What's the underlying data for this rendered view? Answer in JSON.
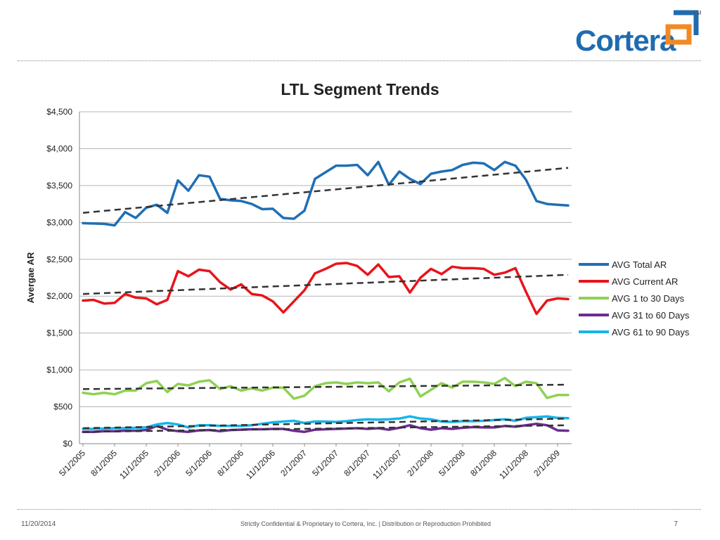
{
  "logo": {
    "text": "Cortera",
    "tm": "TM"
  },
  "footer": {
    "date": "11/20/2014",
    "confidential": "Strictly Confidential & Proprietary to Cortera, Inc. |  Distribution or Reproduction Prohibited",
    "page": "7"
  },
  "chart_data": {
    "type": "line",
    "title": "LTL Segment Trends",
    "ylabel": "Avergae AR",
    "xlabel": "",
    "ylim": [
      0,
      4500
    ],
    "yticks": [
      "$0",
      "$500",
      "$1,000",
      "$1,500",
      "$2,000",
      "$2,500",
      "$3,000",
      "$3,500",
      "$4,000",
      "$4,500"
    ],
    "xtick_labels": [
      "5/1/2005",
      "8/1/2005",
      "11/1/2005",
      "2/1/2006",
      "5/1/2006",
      "8/1/2006",
      "11/1/2006",
      "2/1/2007",
      "5/1/2007",
      "8/1/2007",
      "11/1/2007",
      "2/1/2008",
      "5/1/2008",
      "8/1/2008",
      "11/1/2008",
      "2/1/2009"
    ],
    "grid": "horizontal",
    "legend_position": "right",
    "x": [
      "5/1/2005",
      "6/1/2005",
      "7/1/2005",
      "8/1/2005",
      "9/1/2005",
      "10/1/2005",
      "11/1/2005",
      "12/1/2005",
      "1/1/2006",
      "2/1/2006",
      "3/1/2006",
      "4/1/2006",
      "5/1/2006",
      "6/1/2006",
      "7/1/2006",
      "8/1/2006",
      "9/1/2006",
      "10/1/2006",
      "11/1/2006",
      "12/1/2006",
      "1/1/2007",
      "2/1/2007",
      "3/1/2007",
      "4/1/2007",
      "5/1/2007",
      "6/1/2007",
      "7/1/2007",
      "8/1/2007",
      "9/1/2007",
      "10/1/2007",
      "11/1/2007",
      "12/1/2007",
      "1/1/2008",
      "2/1/2008",
      "3/1/2008",
      "4/1/2008",
      "5/1/2008",
      "6/1/2008",
      "7/1/2008",
      "8/1/2008",
      "9/1/2008",
      "10/1/2008",
      "11/1/2008",
      "12/1/2008",
      "1/1/2009",
      "2/1/2009",
      "3/1/2009"
    ],
    "series": [
      {
        "name": "AVG Total AR",
        "color": "#1f6fb5",
        "values": [
          2990,
          2985,
          2980,
          2960,
          3140,
          3060,
          3200,
          3240,
          3130,
          3570,
          3430,
          3640,
          3620,
          3320,
          3300,
          3290,
          3250,
          3180,
          3185,
          3060,
          3050,
          3160,
          3590,
          3680,
          3770,
          3770,
          3780,
          3640,
          3820,
          3510,
          3690,
          3590,
          3520,
          3660,
          3690,
          3710,
          3780,
          3810,
          3800,
          3710,
          3820,
          3770,
          3580,
          3290,
          3250,
          3240,
          3230
        ],
        "trend": [
          3130,
          3740
        ]
      },
      {
        "name": "AVG Current AR",
        "color": "#e8141b",
        "values": [
          1940,
          1950,
          1900,
          1910,
          2030,
          1980,
          1970,
          1890,
          1950,
          2340,
          2270,
          2360,
          2340,
          2190,
          2090,
          2160,
          2030,
          2010,
          1930,
          1780,
          1930,
          2080,
          2310,
          2370,
          2440,
          2450,
          2410,
          2290,
          2430,
          2260,
          2270,
          2050,
          2250,
          2370,
          2300,
          2400,
          2380,
          2380,
          2370,
          2290,
          2320,
          2380,
          2060,
          1760,
          1940,
          1970,
          1960
        ],
        "trend": [
          2030,
          2290
        ]
      },
      {
        "name": "AVG 1 to 30 Days",
        "color": "#8fd152",
        "values": [
          690,
          670,
          690,
          670,
          720,
          720,
          820,
          850,
          700,
          810,
          790,
          840,
          860,
          740,
          780,
          720,
          750,
          720,
          760,
          760,
          610,
          650,
          780,
          820,
          830,
          810,
          830,
          820,
          830,
          710,
          830,
          880,
          640,
          730,
          820,
          760,
          840,
          840,
          830,
          810,
          890,
          780,
          840,
          820,
          620,
          660,
          660
        ],
        "trend": [
          740,
          800
        ]
      },
      {
        "name": "AVG 31 to 60 Days",
        "color": "#6a2c91",
        "values": [
          160,
          160,
          170,
          170,
          175,
          175,
          185,
          240,
          190,
          170,
          160,
          180,
          185,
          170,
          185,
          190,
          195,
          195,
          200,
          200,
          175,
          160,
          190,
          195,
          200,
          205,
          210,
          200,
          210,
          190,
          215,
          250,
          210,
          190,
          210,
          200,
          215,
          225,
          220,
          220,
          240,
          230,
          250,
          270,
          250,
          180,
          175
        ],
        "trend": [
          160,
          250
        ]
      },
      {
        "name": "AVG 61 to 90 Days",
        "color": "#14b5ea",
        "values": [
          200,
          200,
          205,
          210,
          210,
          215,
          220,
          260,
          280,
          260,
          220,
          250,
          250,
          240,
          240,
          240,
          250,
          270,
          290,
          300,
          310,
          280,
          300,
          300,
          295,
          305,
          320,
          330,
          325,
          330,
          340,
          370,
          340,
          330,
          300,
          295,
          305,
          305,
          310,
          320,
          330,
          310,
          350,
          360,
          370,
          350,
          345
        ],
        "trend": [
          210,
          340
        ]
      }
    ]
  }
}
